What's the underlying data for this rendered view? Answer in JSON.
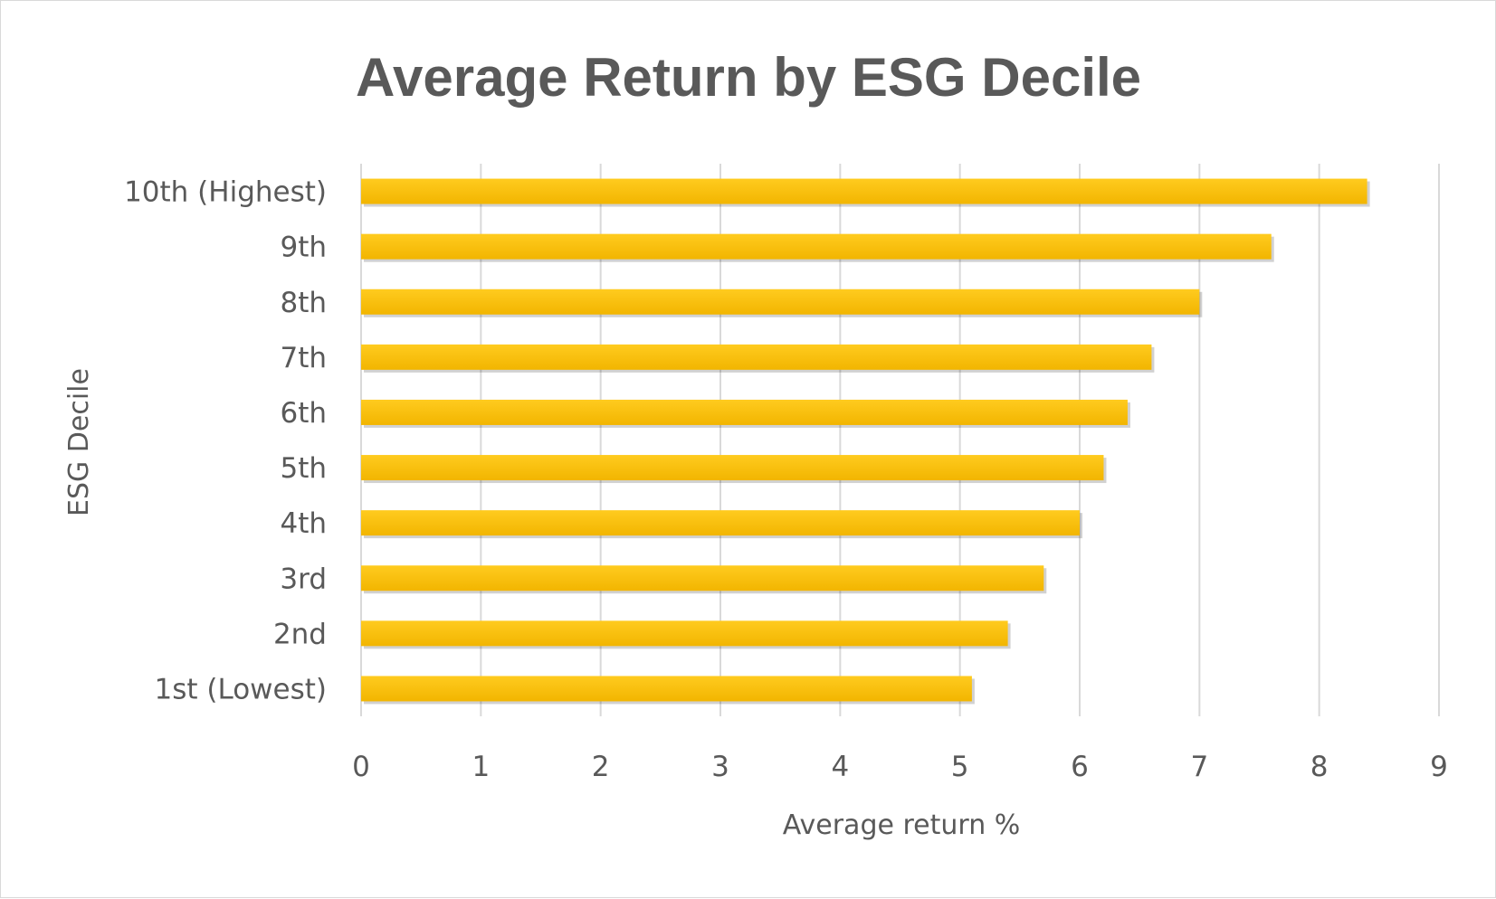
{
  "chart_data": {
    "type": "bar",
    "orientation": "horizontal",
    "title": "Average Return by ESG Decile",
    "xlabel": "Average return %",
    "ylabel": "ESG Decile",
    "categories": [
      "1st (Lowest)",
      "2nd",
      "3rd",
      "4th",
      "5th",
      "6th",
      "7th",
      "8th",
      "9th",
      "10th (Highest)"
    ],
    "values": [
      5.1,
      5.4,
      5.7,
      6.0,
      6.2,
      6.4,
      6.6,
      7.0,
      7.6,
      8.4
    ],
    "xlim": [
      0,
      9
    ],
    "xticks": [
      "0",
      "1",
      "2",
      "3",
      "4",
      "5",
      "6",
      "7",
      "8",
      "9"
    ],
    "grid": true,
    "bar_color": "#FFC000",
    "legend": false
  }
}
